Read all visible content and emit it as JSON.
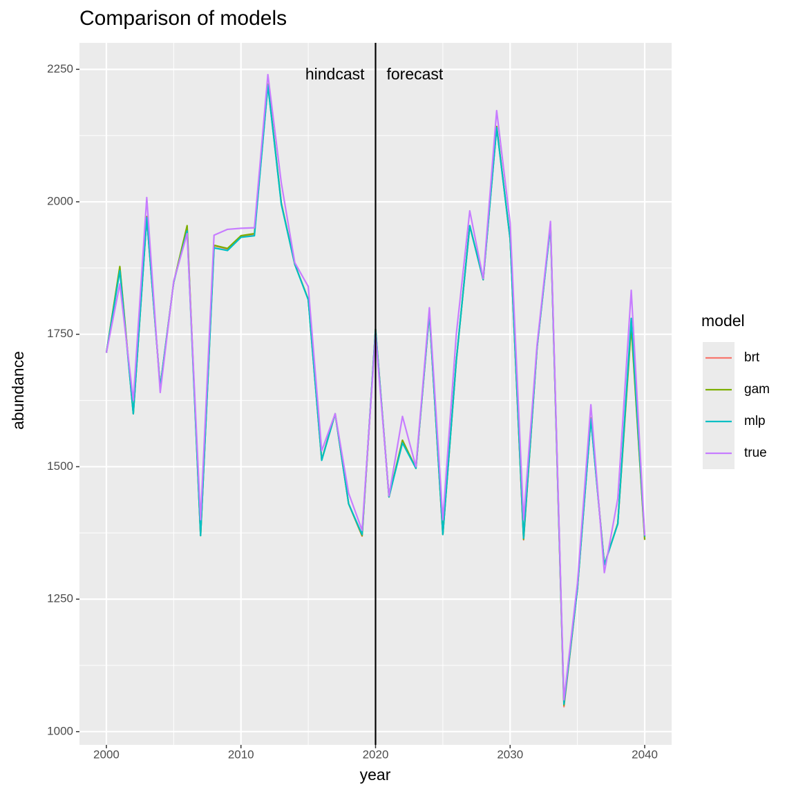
{
  "chart_data": {
    "type": "line",
    "title": "Comparison of models",
    "x_label": "year",
    "y_label": "abundance",
    "x": [
      2000,
      2001,
      2002,
      2003,
      2004,
      2005,
      2006,
      2007,
      2008,
      2009,
      2010,
      2011,
      2012,
      2013,
      2014,
      2015,
      2016,
      2017,
      2018,
      2019,
      2020,
      2021,
      2022,
      2023,
      2024,
      2025,
      2026,
      2027,
      2028,
      2029,
      2030,
      2031,
      2032,
      2033,
      2034,
      2035,
      2036,
      2037,
      2038,
      2039,
      2040
    ],
    "series": [
      {
        "name": "brt",
        "color": "#F8766D",
        "values": [
          1715,
          1876,
          1600,
          1972,
          1650,
          1848,
          1952,
          1370,
          1917,
          1911,
          1935,
          1939,
          2222,
          1997,
          1882,
          1816,
          1513,
          1600,
          1430,
          1369,
          1760,
          1443,
          1550,
          1497,
          1790,
          1372,
          1700,
          1955,
          1853,
          2142,
          1930,
          1362,
          1725,
          1957,
          1047,
          1270,
          1592,
          1315,
          1393,
          1770,
          1362
        ]
      },
      {
        "name": "gam",
        "color": "#7CAE00",
        "values": [
          1715,
          1878,
          1600,
          1972,
          1650,
          1848,
          1955,
          1370,
          1918,
          1912,
          1936,
          1940,
          2222,
          1997,
          1882,
          1816,
          1513,
          1600,
          1430,
          1370,
          1760,
          1443,
          1550,
          1497,
          1790,
          1372,
          1700,
          1955,
          1853,
          2142,
          1930,
          1363,
          1725,
          1957,
          1050,
          1270,
          1592,
          1315,
          1393,
          1765,
          1362
        ]
      },
      {
        "name": "mlp",
        "color": "#00BFC4",
        "values": [
          1715,
          1870,
          1600,
          1970,
          1650,
          1848,
          1945,
          1370,
          1913,
          1908,
          1933,
          1936,
          2220,
          1995,
          1882,
          1815,
          1512,
          1600,
          1430,
          1372,
          1760,
          1443,
          1545,
          1497,
          1790,
          1372,
          1700,
          1955,
          1853,
          2140,
          1930,
          1365,
          1725,
          1955,
          1052,
          1270,
          1590,
          1315,
          1392,
          1780,
          1368
        ]
      },
      {
        "name": "true",
        "color": "#C77CFF",
        "values": [
          1715,
          1845,
          1625,
          2008,
          1640,
          1850,
          1940,
          1400,
          1937,
          1948,
          1950,
          1951,
          2240,
          2035,
          1885,
          1840,
          1530,
          1600,
          1450,
          1380,
          1750,
          1445,
          1595,
          1500,
          1800,
          1400,
          1750,
          1983,
          1855,
          2172,
          1960,
          1400,
          1730,
          1963,
          1060,
          1280,
          1617,
          1300,
          1440,
          1833,
          1370
        ]
      }
    ],
    "xlim": [
      1998,
      2042
    ],
    "xticks": [
      2000,
      2010,
      2020,
      2030,
      2040
    ],
    "ylim": [
      975,
      2300
    ],
    "yticks": [
      1000,
      1250,
      1500,
      1750,
      2000,
      2250
    ],
    "vline": 2020,
    "annotations": [
      "hindcast",
      "forecast"
    ],
    "legend_title": "model",
    "grid": true
  }
}
